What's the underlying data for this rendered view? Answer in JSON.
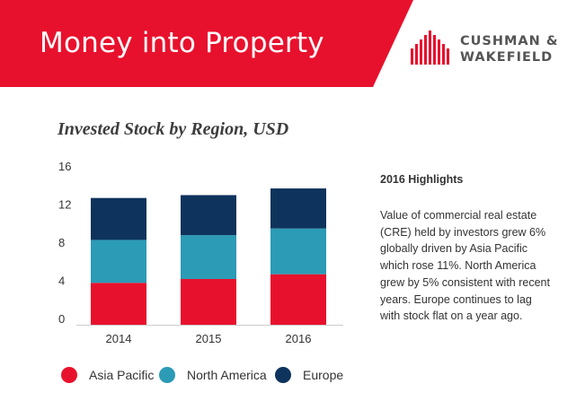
{
  "header": {
    "title": "Money into Property",
    "brand_line1": "CUSHMAN &",
    "brand_line2": "WAKEFIELD",
    "banner_color": "#e8112d",
    "brand_color": "#e8112d"
  },
  "chart_data": {
    "type": "bar",
    "stacked": true,
    "title": "Invested Stock by Region, USD",
    "categories": [
      "2014",
      "2015",
      "2016"
    ],
    "series": [
      {
        "name": "Asia Pacific",
        "color": "#e8112d",
        "values": [
          4.4,
          4.8,
          5.3
        ]
      },
      {
        "name": "North America",
        "color": "#2b9bb6",
        "values": [
          4.5,
          4.6,
          4.8
        ]
      },
      {
        "name": "Europe",
        "color": "#0e335c",
        "values": [
          4.4,
          4.2,
          4.2
        ]
      }
    ],
    "y_ticks": [
      "0",
      "4",
      "8",
      "12",
      "16"
    ],
    "ylim": [
      0,
      16
    ],
    "xlabel": "",
    "ylabel": "",
    "legend_position": "bottom",
    "grid": false
  },
  "highlights": {
    "title": "2016 Highlights",
    "body": "Value of commercial real estate (CRE) held by investors grew 6% globally driven by Asia Pacific which rose 11%. North America grew by 5% consistent with recent years. Europe continues to lag with stock flat on a year ago."
  }
}
